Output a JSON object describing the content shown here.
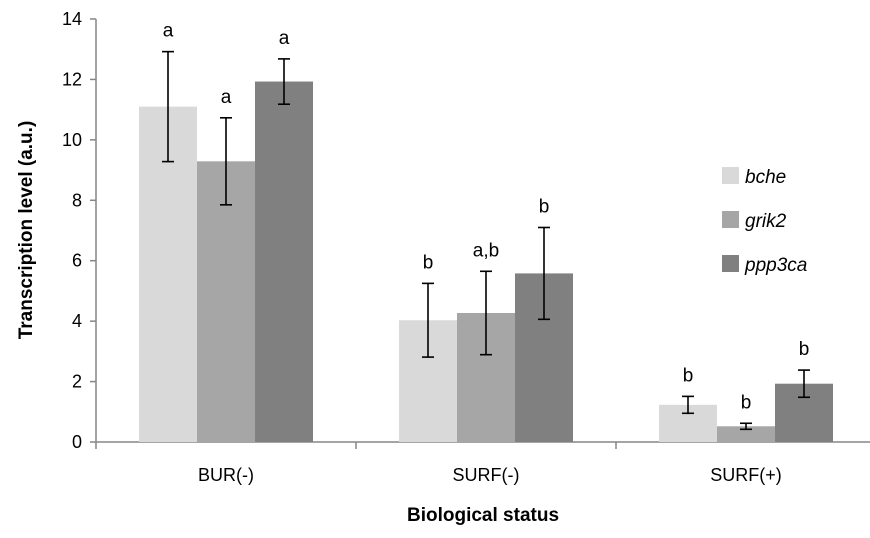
{
  "chart_data": {
    "type": "bar",
    "title": "",
    "xlabel": "Biological status",
    "ylabel": "Transcription level (a.u.)",
    "ylim": [
      0,
      14
    ],
    "yticks": [
      0,
      2,
      4,
      6,
      8,
      10,
      12,
      14
    ],
    "categories": [
      "BUR(-)",
      "SURF(-)",
      "SURF(+)"
    ],
    "legend_position": "right",
    "grid": false,
    "series": [
      {
        "name": "bche",
        "color": "#d9d9d9",
        "values": [
          11.1,
          4.03,
          1.23
        ],
        "errors": [
          1.82,
          1.22,
          0.28
        ],
        "labels": [
          "a",
          "b",
          "b"
        ]
      },
      {
        "name": "grik2",
        "color": "#a6a6a6",
        "values": [
          9.29,
          4.27,
          0.52
        ],
        "errors": [
          1.44,
          1.38,
          0.1
        ],
        "labels": [
          "a",
          "a,b",
          "b"
        ]
      },
      {
        "name": "ppp3ca",
        "color": "#808080",
        "values": [
          11.93,
          5.58,
          1.93
        ],
        "errors": [
          0.75,
          1.52,
          0.45
        ],
        "labels": [
          "a",
          "b",
          "b"
        ]
      }
    ]
  }
}
